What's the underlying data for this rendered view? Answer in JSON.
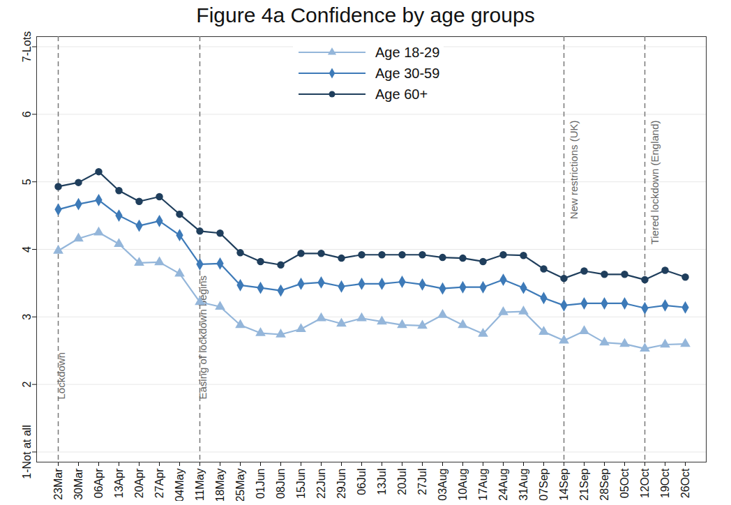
{
  "chart_data": {
    "type": "line",
    "title": "Figure 4a Confidence by age groups",
    "x": [
      "23Mar",
      "30Mar",
      "06Apr",
      "13Apr",
      "20Apr",
      "27Apr",
      "04May",
      "11May",
      "18May",
      "25May",
      "01Jun",
      "08Jun",
      "15Jun",
      "22Jun",
      "29Jun",
      "06Jul",
      "13Jul",
      "20Jul",
      "27Jul",
      "03Aug",
      "10Aug",
      "17Aug",
      "24Aug",
      "31Aug",
      "07Sep",
      "14Sep",
      "21Sep",
      "28Sep",
      "05Oct",
      "12Oct",
      "19Oct",
      "26Oct"
    ],
    "series": [
      {
        "name": "Age 18-29",
        "color": "#94b6da",
        "marker": "triangle",
        "values": [
          3.98,
          4.16,
          4.25,
          4.08,
          3.8,
          3.81,
          3.64,
          3.22,
          3.15,
          2.88,
          2.76,
          2.74,
          2.82,
          2.98,
          2.9,
          2.98,
          2.93,
          2.88,
          2.87,
          3.03,
          2.88,
          2.75,
          3.07,
          3.08,
          2.78,
          2.65,
          2.79,
          2.62,
          2.6,
          2.53,
          2.59,
          2.6
        ]
      },
      {
        "name": "Age 30-59",
        "color": "#3d7ab8",
        "marker": "diamond",
        "values": [
          4.59,
          4.67,
          4.73,
          4.5,
          4.35,
          4.42,
          4.21,
          3.78,
          3.79,
          3.47,
          3.43,
          3.39,
          3.49,
          3.51,
          3.45,
          3.49,
          3.49,
          3.52,
          3.48,
          3.42,
          3.44,
          3.44,
          3.55,
          3.43,
          3.28,
          3.17,
          3.2,
          3.2,
          3.2,
          3.13,
          3.17,
          3.14
        ]
      },
      {
        "name": "Age 60+",
        "color": "#1f3e5c",
        "marker": "circle",
        "values": [
          4.93,
          4.99,
          5.15,
          4.87,
          4.71,
          4.78,
          4.52,
          4.27,
          4.24,
          3.95,
          3.82,
          3.77,
          3.94,
          3.94,
          3.87,
          3.92,
          3.92,
          3.92,
          3.92,
          3.88,
          3.87,
          3.82,
          3.92,
          3.91,
          3.71,
          3.57,
          3.68,
          3.63,
          3.63,
          3.55,
          3.69,
          3.59
        ]
      }
    ],
    "ylim": [
      0.85,
      7.15
    ],
    "yticks": [
      {
        "value": 1,
        "label": "1-Not at all"
      },
      2,
      3,
      4,
      5,
      6,
      {
        "value": 7,
        "label": "7-Lots"
      }
    ],
    "grid": true,
    "legend": "top",
    "annotations": [
      {
        "x": "23Mar",
        "label": "Lockdown"
      },
      {
        "x": "11May",
        "label": "Easing of lockdown begins"
      },
      {
        "x": "14Sep",
        "label": "New restrictions (UK)"
      },
      {
        "x": "12Oct",
        "label": "Tiered lockdown (England)"
      }
    ]
  }
}
